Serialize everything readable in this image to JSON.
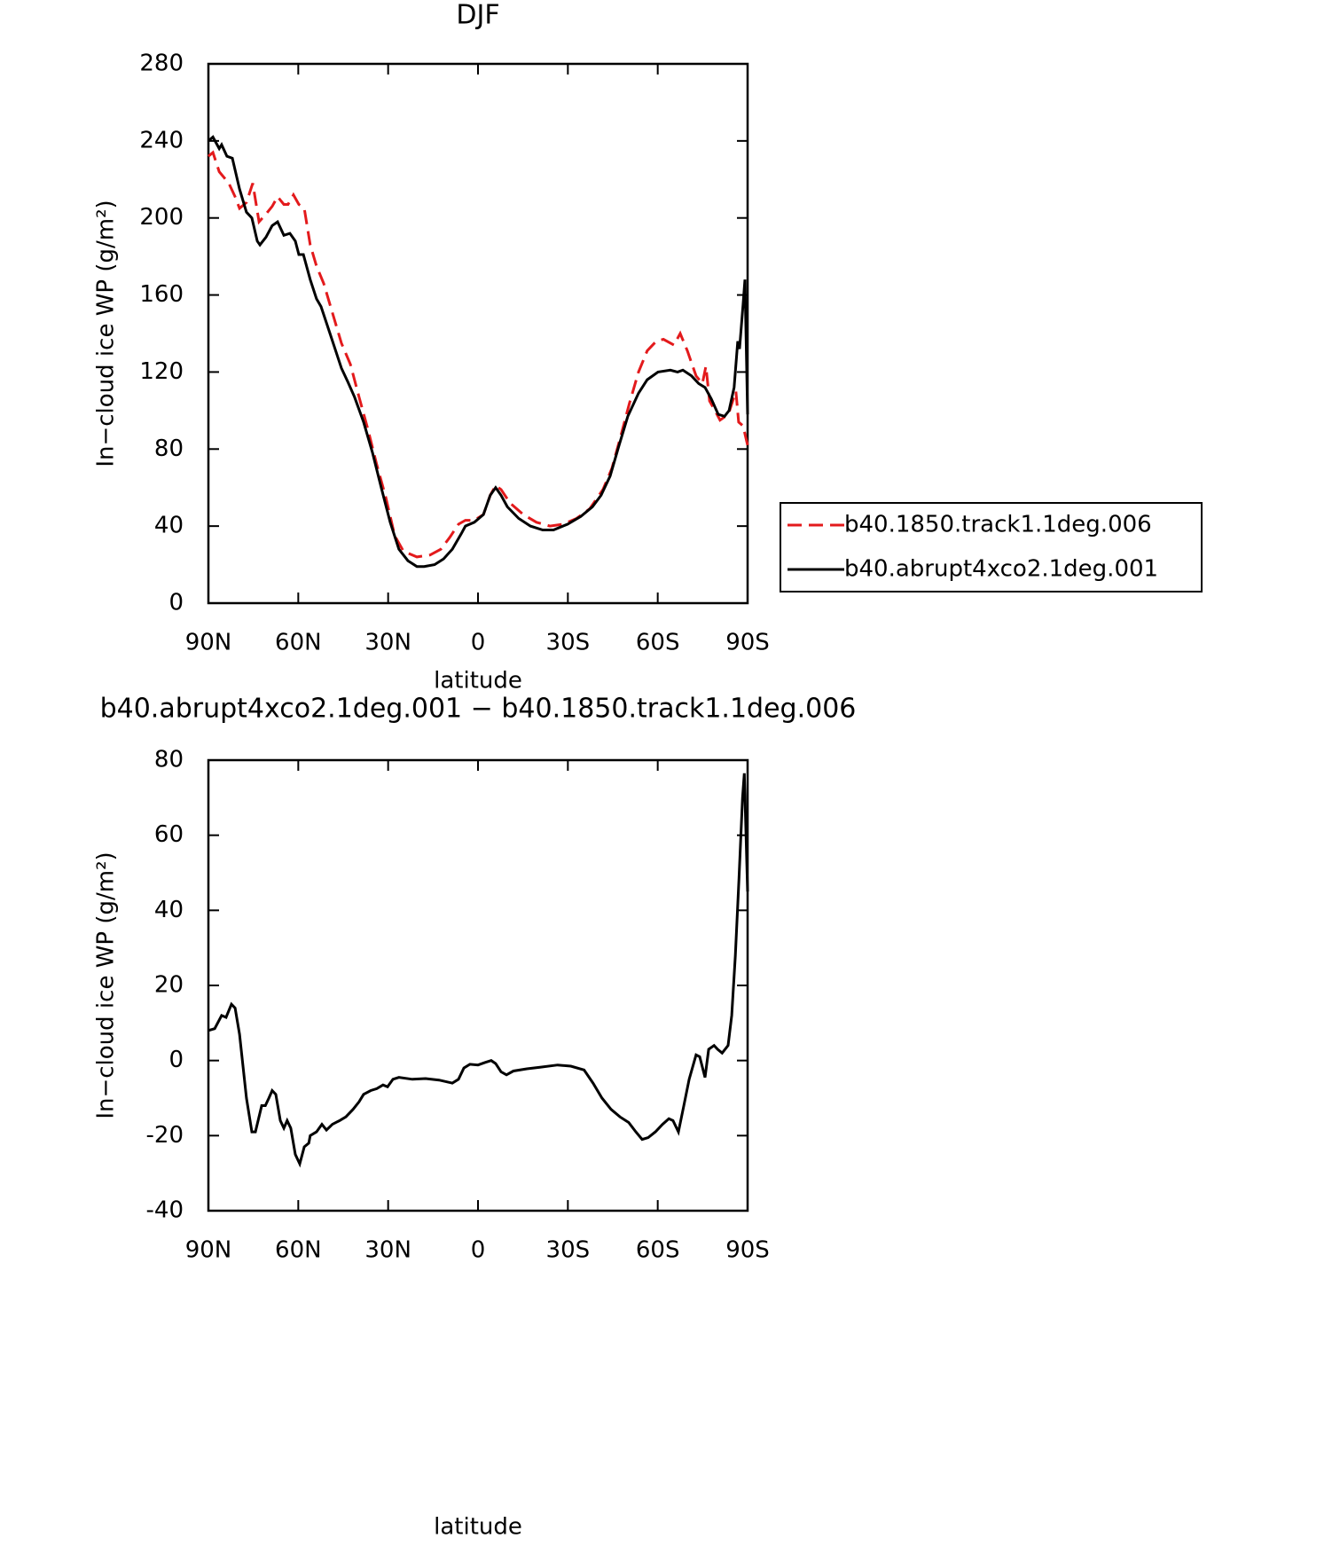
{
  "chart_data": [
    {
      "type": "line",
      "title": "DJF",
      "xlabel": "latitude",
      "ylabel": "In−cloud ice WP (g/m²)",
      "xlim": [
        90,
        -90
      ],
      "xticks": [
        {
          "value": 90,
          "label": "90N"
        },
        {
          "value": 60,
          "label": "60N"
        },
        {
          "value": 30,
          "label": "30N"
        },
        0,
        {
          "value": -30,
          "label": "30S"
        },
        {
          "value": -60,
          "label": "60S"
        },
        {
          "value": -90,
          "label": "90S"
        }
      ],
      "ylim": [
        0,
        280
      ],
      "yticks": [
        0,
        40,
        80,
        120,
        160,
        200,
        240,
        280
      ],
      "legend": "right",
      "series": [
        {
          "name": "b40.1850.track1.1deg.006",
          "color": "#e31a1c",
          "dash": true,
          "x": [
            90,
            88.5,
            86.4,
            83.2,
            81.1,
            79.6,
            77.3,
            75.2,
            73.1,
            70.8,
            68.7,
            66.9,
            64.8,
            63.4,
            61.6,
            59.8,
            58,
            56,
            53.9,
            51.5,
            49.4,
            45.6,
            42.6,
            39.7,
            36.7,
            33.8,
            30.8,
            27.8,
            24.9,
            20.4,
            16,
            12.4,
            9.5,
            6.5,
            4.2,
            1.2,
            -1.8,
            -4.1,
            -5.9,
            -7.7,
            -10.7,
            -15.1,
            -19.5,
            -24,
            -28.4,
            -32.9,
            -37.3,
            -41.7,
            -44.7,
            -47.7,
            -50.6,
            -53.6,
            -56.5,
            -59.5,
            -61.9,
            -65.4,
            -67.5,
            -69.9,
            -72.8,
            -74.9,
            -76.1,
            -77.3,
            -79.1,
            -80.8,
            -82.6,
            -84,
            -86.1,
            -87,
            -88.5,
            -90
          ],
          "values": [
            232,
            234,
            224,
            218,
            211,
            205,
            208,
            218,
            198,
            202,
            206,
            211,
            207,
            207,
            212,
            207,
            205,
            186,
            175,
            166,
            155,
            135,
            124,
            107,
            90,
            72,
            55,
            35,
            27,
            24,
            25,
            28,
            34,
            41,
            43,
            43,
            46,
            56,
            61,
            59,
            52,
            46,
            42,
            40,
            41,
            44,
            49,
            59,
            70,
            87,
            104,
            120,
            131,
            136,
            137,
            134,
            140,
            131,
            118,
            114,
            123,
            105,
            100,
            95,
            97,
            100,
            110,
            94,
            92,
            82
          ]
        },
        {
          "name": "b40.abrupt4xco2.1deg.001",
          "color": "#000000",
          "dash": false,
          "x": [
            90,
            88.5,
            86.4,
            85.6,
            83.8,
            82,
            79.6,
            77.3,
            75.5,
            73.7,
            72.8,
            70.8,
            68.7,
            66.9,
            64.8,
            62.8,
            61,
            59.8,
            58.3,
            56,
            53.9,
            52.4,
            49.4,
            45.6,
            43.5,
            41.2,
            38.2,
            35.2,
            32.3,
            29.3,
            26.4,
            23.4,
            20.4,
            18,
            14.5,
            11.5,
            8.6,
            5.6,
            4.2,
            1.2,
            -1.8,
            -4.1,
            -5.9,
            -7.7,
            -9.8,
            -13.6,
            -17.5,
            -21.6,
            -25.2,
            -29.9,
            -34.3,
            -38.2,
            -41.1,
            -44.1,
            -47.1,
            -50,
            -53.6,
            -56.5,
            -60.1,
            -64.2,
            -66.6,
            -68.4,
            -71.3,
            -73.7,
            -75.8,
            -77.9,
            -80.2,
            -82.3,
            -83.8,
            -85.5,
            -86.7,
            -87.3,
            -88.5,
            -89.1,
            -90
          ],
          "values": [
            240,
            242,
            236,
            238,
            232,
            231,
            215,
            203,
            200,
            188,
            186,
            190,
            196,
            198,
            191,
            192,
            188,
            181,
            181,
            168,
            158,
            154,
            140,
            122,
            115,
            107,
            94,
            78,
            60,
            42,
            28,
            22,
            19,
            19,
            20,
            23,
            28,
            36,
            40,
            42,
            46,
            56,
            60,
            56,
            50,
            44,
            40,
            38,
            38,
            41,
            45,
            50,
            56,
            66,
            82,
            97,
            109,
            116,
            120,
            121,
            120,
            121,
            118,
            114,
            112,
            106,
            98,
            97,
            100,
            112,
            136,
            132,
            155,
            168,
            98
          ]
        }
      ]
    },
    {
      "type": "line",
      "title": "b40.abrupt4xco2.1deg.001 − b40.1850.track1.1deg.006",
      "xlabel": "latitude",
      "ylabel": "In−cloud ice WP (g/m²)",
      "xlim": [
        90,
        -90
      ],
      "xticks": [
        {
          "value": 90,
          "label": "90N"
        },
        {
          "value": 60,
          "label": "60N"
        },
        {
          "value": 30,
          "label": "30N"
        },
        0,
        {
          "value": -30,
          "label": "30S"
        },
        {
          "value": -60,
          "label": "60S"
        },
        {
          "value": -90,
          "label": "90S"
        }
      ],
      "ylim": [
        -40,
        80
      ],
      "yticks": [
        -40,
        -20,
        0,
        20,
        40,
        60,
        80
      ],
      "series": [
        {
          "color": "#000000",
          "dash": false,
          "x": [
            90,
            87.9,
            85.6,
            84.1,
            82.3,
            81.1,
            79.6,
            77.3,
            75.5,
            74.3,
            72.2,
            71,
            69.8,
            68.7,
            67.5,
            66,
            64.8,
            63.7,
            62.5,
            61,
            59.5,
            58,
            56.5,
            56,
            53.9,
            52.1,
            50.6,
            48.6,
            46.2,
            44.1,
            41.7,
            39.7,
            38.2,
            35.8,
            33.8,
            31.7,
            30.2,
            28.4,
            26.4,
            21.9,
            17.5,
            13,
            8.6,
            6.5,
            4.7,
            2.7,
            0,
            -2.4,
            -4.4,
            -5.9,
            -7.7,
            -9.5,
            -11.8,
            -16.3,
            -20.7,
            -26.6,
            -31,
            -35.4,
            -38.4,
            -41.4,
            -44.4,
            -47.4,
            -50.3,
            -52.7,
            -54.8,
            -56.8,
            -59.2,
            -61.6,
            -63.7,
            -65.1,
            -66.9,
            -68.7,
            -70.5,
            -72.8,
            -74,
            -75.8,
            -77,
            -78.8,
            -80,
            -81.5,
            -83.5,
            -84.7,
            -85.9,
            -87.1,
            -88.3,
            -88.9,
            -90
          ],
          "values": [
            8,
            8.5,
            12,
            11.5,
            15,
            14,
            7,
            -10,
            -19,
            -19,
            -12,
            -12,
            -10,
            -8,
            -9,
            -16,
            -18,
            -16,
            -18,
            -25,
            -27.5,
            -23,
            -22,
            -20,
            -19,
            -17,
            -18.5,
            -17,
            -16,
            -15,
            -13,
            -11,
            -9,
            -8,
            -7.5,
            -6.5,
            -7,
            -5,
            -4.5,
            -5,
            -4.8,
            -5.2,
            -6,
            -5,
            -2,
            -1,
            -1.2,
            -0.5,
            0,
            -0.8,
            -3,
            -3.8,
            -2.8,
            -2.2,
            -1.8,
            -1.2,
            -1.5,
            -2.5,
            -6,
            -10,
            -13,
            -15,
            -16.5,
            -19,
            -21,
            -20.5,
            -19,
            -17,
            -15.5,
            -16,
            -19,
            -12,
            -5,
            1.5,
            1,
            -4.5,
            3,
            4,
            3,
            2,
            4,
            12,
            28,
            48,
            70,
            76.5,
            45
          ]
        }
      ]
    }
  ]
}
